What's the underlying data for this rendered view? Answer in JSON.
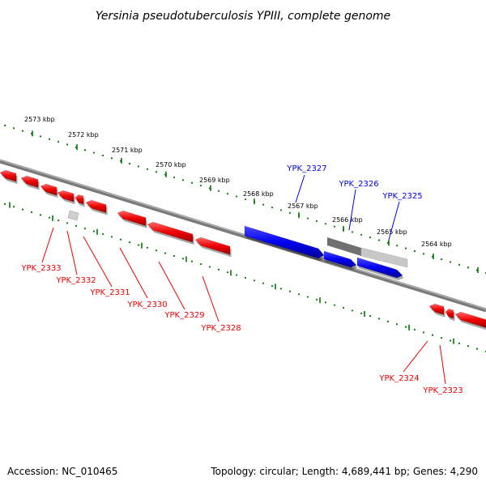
{
  "title": "Yersinia pseudotuberculosis YPIII, complete genome",
  "footer": {
    "accession": "Accession: NC_010465",
    "summary": "Topology: circular; Length: 4,689,441 bp; Genes: 4,290"
  },
  "colors": {
    "forward_gene": "#0000ee",
    "reverse_gene": "#ee0000",
    "pseudo_dark": "#707070",
    "pseudo_light": "#c8c8c8",
    "axis": "#808080",
    "ticks": "#007700"
  },
  "ruler": {
    "labels": [
      "2573 kbp",
      "2572 kbp",
      "2571 kbp",
      "2570 kbp",
      "2569 kbp",
      "2568 kbp",
      "2567 kbp",
      "2566 kbp",
      "2565 kbp",
      "2564 kbp"
    ]
  },
  "genes_forward": [
    {
      "name": "YPK_2327"
    },
    {
      "name": "YPK_2326"
    },
    {
      "name": "YPK_2325"
    }
  ],
  "genes_reverse": [
    {
      "name": "YPK_2333"
    },
    {
      "name": "YPK_2332"
    },
    {
      "name": "YPK_2331"
    },
    {
      "name": "YPK_2330"
    },
    {
      "name": "YPK_2329"
    },
    {
      "name": "YPK_2328"
    },
    {
      "name": "YPK_2324"
    },
    {
      "name": "YPK_2323"
    }
  ]
}
